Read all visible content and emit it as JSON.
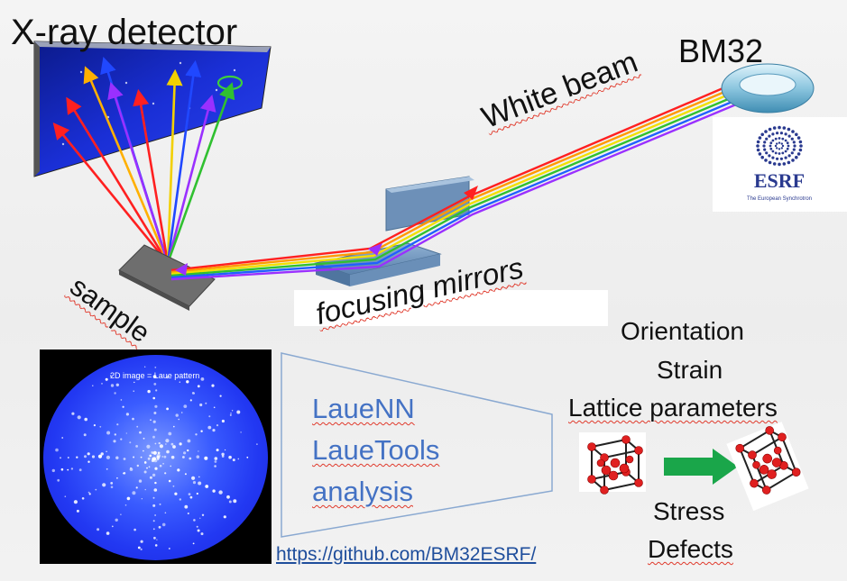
{
  "labels": {
    "detector_title": "X-ray detector",
    "facility": "BM32",
    "beam": "White beam",
    "sample": "sample",
    "mirrors": "focusing mirrors"
  },
  "logo": {
    "name": "ESRF",
    "tagline": "The European Synchrotron"
  },
  "laue_image": {
    "caption": "2D image = Laue pattern"
  },
  "software": [
    "LaueNN",
    "LaueTools",
    "analysis"
  ],
  "repo_link": "https://github.com/BM32ESRF/",
  "outputs": {
    "top": [
      "Orientation",
      "Strain",
      "Lattice parameters"
    ],
    "bottom": [
      "Stress",
      "Defects"
    ]
  },
  "colors": {
    "beam": [
      "#ff2020",
      "#ff9a00",
      "#f2e000",
      "#30c030",
      "#2060ff",
      "#9a30ff"
    ],
    "detector_blue": "#1a2fd6",
    "link": "#1f4e9c",
    "software_text": "#4472c4",
    "arrow_green": "#1aa64a",
    "atom_red": "#e02020"
  }
}
